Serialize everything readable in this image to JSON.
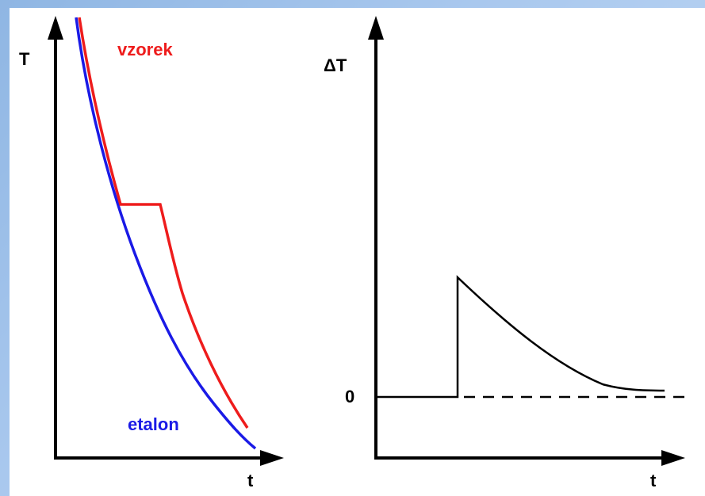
{
  "left_diagram": {
    "y_axis_label": "T",
    "x_axis_label": "t",
    "sample_label": "vzorek",
    "reference_label": "etalon",
    "sample_color": "#ee1c1c",
    "reference_color": "#1a1ae6"
  },
  "right_diagram": {
    "y_axis_label": "ΔT",
    "x_axis_label": "t",
    "zero_label": "0",
    "curve_color": "#000000"
  }
}
